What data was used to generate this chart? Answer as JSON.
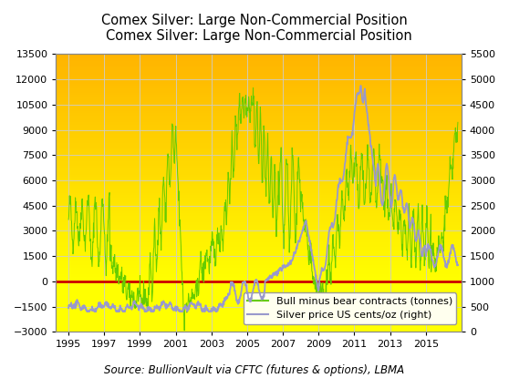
{
  "title": "Comex Silver: Large Non-Commercial Position",
  "source_text": "Source: BullionVault via CFTC (futures & options), LBMA",
  "left_ylim": [
    -3000,
    13500
  ],
  "right_ylim": [
    0,
    5500
  ],
  "left_yticks": [
    -3000,
    -1500,
    0,
    1500,
    3000,
    4500,
    6000,
    7500,
    9000,
    10500,
    12000,
    13500
  ],
  "right_yticks": [
    0,
    500,
    1000,
    1500,
    2000,
    2500,
    3000,
    3500,
    4000,
    4500,
    5000,
    5500
  ],
  "xticks": [
    1995,
    1997,
    1999,
    2001,
    2003,
    2005,
    2007,
    2009,
    2011,
    2013,
    2015
  ],
  "xlim": [
    1994.3,
    2017.0
  ],
  "green_color": "#66CC00",
  "purple_color": "#9999CC",
  "red_color": "#CC0000",
  "grid_color": "#CCCCCC",
  "legend_labels": [
    "Bull minus bear contracts (tonnes)",
    "Silver price US cents/oz (right)"
  ],
  "title_fontsize": 10.5,
  "tick_fontsize": 8,
  "source_fontsize": 8.5,
  "legend_fontsize": 8
}
